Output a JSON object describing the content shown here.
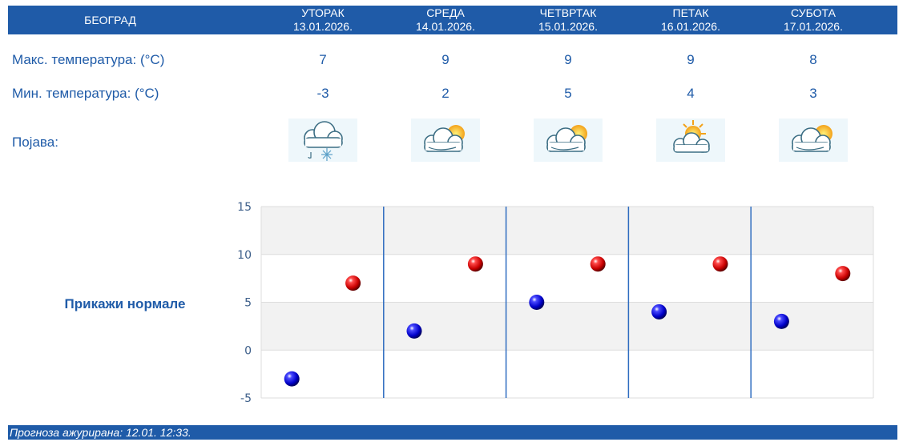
{
  "header": {
    "city": "БЕОГРАД"
  },
  "days": [
    {
      "name": "УТОРАК",
      "date": "13.01.2026.",
      "max": "7",
      "min": "-3",
      "icon": "cloud-snow-icon"
    },
    {
      "name": "СРЕДА",
      "date": "14.01.2026.",
      "max": "9",
      "min": "2",
      "icon": "partly-cloudy-icon"
    },
    {
      "name": "ЧЕТВРТАК",
      "date": "15.01.2026.",
      "max": "9",
      "min": "5",
      "icon": "partly-cloudy-icon"
    },
    {
      "name": "ПЕТАК",
      "date": "16.01.2026.",
      "max": "9",
      "min": "4",
      "icon": "mostly-sunny-icon"
    },
    {
      "name": "СУБОТА",
      "date": "17.01.2026.",
      "max": "8",
      "min": "3",
      "icon": "partly-cloudy-icon"
    }
  ],
  "labels": {
    "max": "Макс. температура: (°C)",
    "min": "Мин. температура: (°C)",
    "phenomenon": "Појава:"
  },
  "normals_button": "Прикажи нормале",
  "chart_data": {
    "type": "scatter",
    "categories": [
      "УТОРАК",
      "СРЕДА",
      "ЧЕТВРТАК",
      "ПЕТАК",
      "СУБОТА"
    ],
    "series": [
      {
        "values": [
          -3,
          2,
          5,
          4,
          3
        ],
        "color": "#0000cc"
      },
      {
        "values": [
          7,
          9,
          9,
          9,
          8
        ],
        "color": "#cc0000"
      }
    ],
    "ylim": [
      -5,
      15
    ],
    "yticks": [
      "15",
      "10",
      "5",
      "0",
      "-5"
    ],
    "xlabel": "",
    "ylabel": "",
    "grid": true
  },
  "footer": {
    "updated": "Прогноза ажурирана:  12.01. 12:33."
  }
}
